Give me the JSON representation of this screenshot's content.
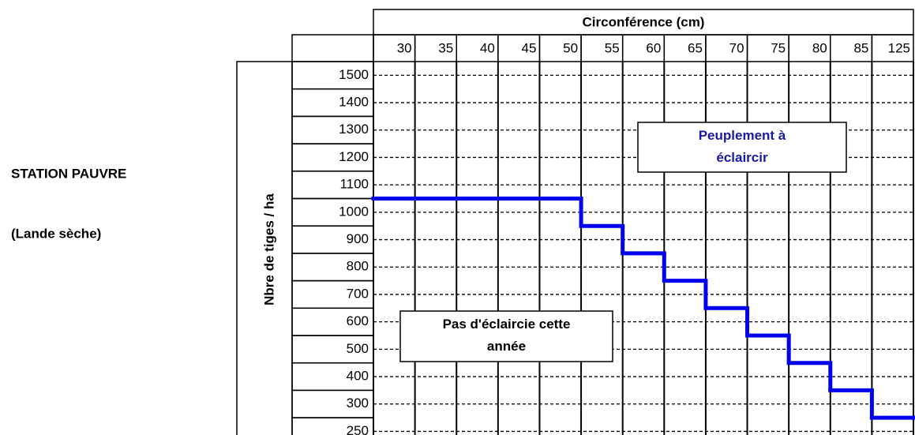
{
  "chart_data": {
    "type": "step",
    "side_title": "STATION PAUVRE",
    "side_subtitle": "(Lande sèche)",
    "x_label": "Circonférence (cm)",
    "y_label": "Nbre de tiges / ha",
    "categories": [
      30,
      35,
      40,
      45,
      50,
      55,
      60,
      65,
      70,
      75,
      80,
      85,
      125
    ],
    "rows": [
      1500,
      1400,
      1300,
      1200,
      1100,
      1000,
      900,
      800,
      700,
      600,
      500,
      400,
      300,
      250
    ],
    "values": [
      1000,
      1000,
      1000,
      1000,
      1000,
      900,
      800,
      700,
      600,
      500,
      400,
      300,
      250
    ],
    "color": "#0000ee",
    "annotations": [
      "Peuplement à éclaircir",
      "Pas d'éclaircie cette année"
    ],
    "annotation_colors": [
      "#1a1aa6",
      "#000000"
    ]
  }
}
